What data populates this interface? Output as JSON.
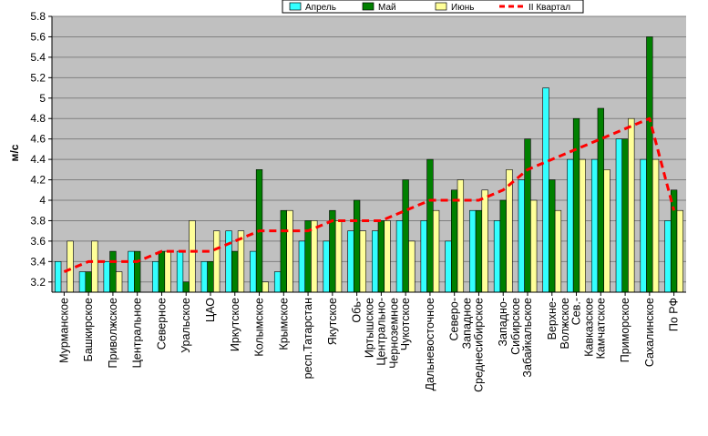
{
  "chart_data": {
    "type": "bar",
    "ylabel": "м/с",
    "ylim": [
      3.1,
      5.8
    ],
    "y_ticks": [
      "3.2",
      "3.4",
      "3.6",
      "3.8",
      "4",
      "4.2",
      "4.4",
      "4.6",
      "4.8",
      "5",
      "5.2",
      "5.4",
      "5.6",
      "5.8"
    ],
    "grid": true,
    "legend_position": "top",
    "categories": [
      "Мурманское",
      "Башкирское",
      "Приволжское",
      "Центральное",
      "Северное",
      "Уральское",
      "ЦАО",
      "Иркутское",
      "Колымское",
      "Крымское",
      "респ.Татарстан",
      "Якутское",
      "Обь-Иртышское",
      "Центрально-Черноземное",
      "Чукотское",
      "Дальневосточное",
      "Северо-Западное",
      "Среднесибирское",
      "Западно-Сибирское",
      "Забайкальское",
      "Верхне-Волжское",
      "Сев.-Кавказское",
      "Камчатское",
      "Приморское",
      "Сахалинское",
      "По РФ"
    ],
    "category_label_lines": [
      [
        "Мурманское"
      ],
      [
        "Башкирское"
      ],
      [
        "Приволжское"
      ],
      [
        "Центральное"
      ],
      [
        "Северное"
      ],
      [
        "Уральское"
      ],
      [
        "ЦАО"
      ],
      [
        "Иркутское"
      ],
      [
        "Колымское"
      ],
      [
        "Крымское"
      ],
      [
        "респ.Татарстан"
      ],
      [
        "Якутское"
      ],
      [
        "Обь-",
        "Иртышское"
      ],
      [
        "Центрально-",
        "Черноземное"
      ],
      [
        "Чукотское"
      ],
      [
        "Дальневосточное"
      ],
      [
        "Северо-",
        "Западное"
      ],
      [
        "Среднесибирское"
      ],
      [
        "Западно-",
        "Сибирское"
      ],
      [
        "Забайкальское"
      ],
      [
        "Верхне-",
        "Волжское"
      ],
      [
        "Сев.-",
        "Кавказское"
      ],
      [
        "Камчатское"
      ],
      [
        "Приморское"
      ],
      [
        "Сахалинское"
      ],
      [
        "По РФ"
      ]
    ],
    "series": [
      {
        "name": "Апрель",
        "type": "bar",
        "color": "#33ffff",
        "values": [
          3.4,
          3.3,
          3.4,
          3.5,
          3.4,
          3.5,
          3.4,
          3.7,
          3.5,
          3.3,
          3.6,
          3.6,
          3.7,
          3.7,
          3.8,
          3.8,
          3.6,
          3.9,
          3.8,
          4.2,
          5.1,
          4.4,
          4.4,
          4.6,
          4.4,
          3.8
        ]
      },
      {
        "name": "Май",
        "type": "bar",
        "color": "#008000",
        "values": [
          3.1,
          3.3,
          3.5,
          3.5,
          3.5,
          3.2,
          3.4,
          3.5,
          4.3,
          3.9,
          3.8,
          3.9,
          4.0,
          3.8,
          4.2,
          4.4,
          4.1,
          3.9,
          4.0,
          4.6,
          4.2,
          4.8,
          4.9,
          4.6,
          5.6,
          4.1
        ]
      },
      {
        "name": "Июнь",
        "type": "bar",
        "color": "#ffff99",
        "values": [
          3.6,
          3.6,
          3.3,
          3.1,
          3.5,
          3.8,
          3.7,
          3.7,
          3.2,
          3.9,
          3.8,
          3.8,
          3.7,
          3.8,
          3.6,
          3.9,
          4.2,
          4.1,
          4.3,
          4.0,
          3.9,
          4.4,
          4.3,
          4.8,
          4.4,
          3.9
        ]
      },
      {
        "name": "II Квартал",
        "type": "line",
        "color": "#ff0000",
        "values": [
          3.3,
          3.4,
          3.4,
          3.4,
          3.5,
          3.5,
          3.5,
          3.6,
          3.7,
          3.7,
          3.7,
          3.8,
          3.8,
          3.8,
          3.9,
          4.0,
          4.0,
          4.0,
          4.1,
          4.3,
          4.4,
          4.5,
          4.6,
          4.7,
          4.8,
          3.9
        ]
      }
    ]
  },
  "colors": {
    "plot_bg": "#c0c0c0",
    "grid": "#808080",
    "bar_outline": "#000000"
  }
}
